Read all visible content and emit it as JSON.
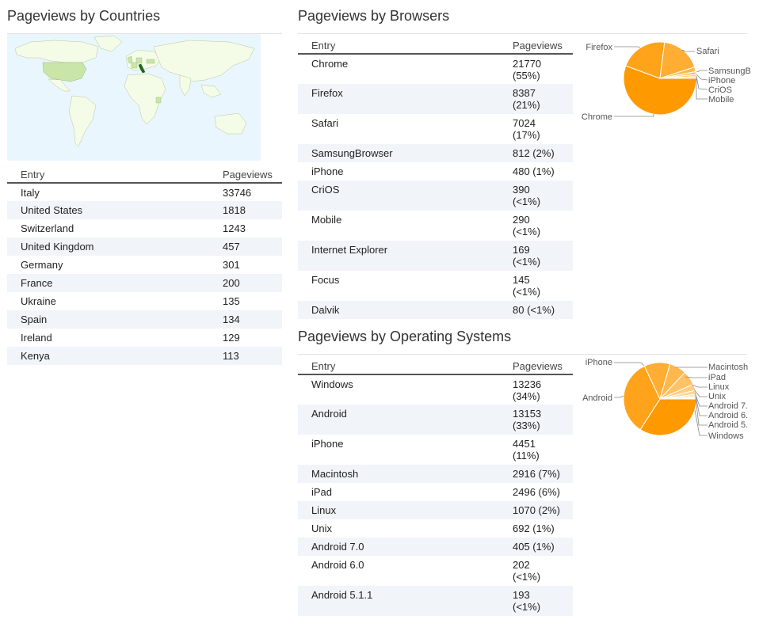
{
  "countries": {
    "title": "Pageviews by Countries",
    "headers": [
      "Entry",
      "Pageviews"
    ],
    "rows": [
      [
        "Italy",
        "33746"
      ],
      [
        "United States",
        "1818"
      ],
      [
        "Switzerland",
        "1243"
      ],
      [
        "United Kingdom",
        "457"
      ],
      [
        "Germany",
        "301"
      ],
      [
        "France",
        "200"
      ],
      [
        "Ukraine",
        "135"
      ],
      [
        "Spain",
        "134"
      ],
      [
        "Ireland",
        "129"
      ],
      [
        "Kenya",
        "113"
      ]
    ]
  },
  "browsers": {
    "title": "Pageviews by Browsers",
    "headers": [
      "Entry",
      "Pageviews"
    ],
    "rows": [
      [
        "Chrome",
        "21770",
        "(55%)"
      ],
      [
        "Firefox",
        "8387",
        "(21%)"
      ],
      [
        "Safari",
        "7024",
        "(17%)"
      ],
      [
        "SamsungBrowser",
        "812 (2%)",
        ""
      ],
      [
        "iPhone",
        "480 (1%)",
        ""
      ],
      [
        "CriOS",
        "390",
        "(<1%)"
      ],
      [
        "Mobile",
        "290",
        "(<1%)"
      ],
      [
        "Internet Explorer",
        "169",
        "(<1%)"
      ],
      [
        "Focus",
        "145",
        "(<1%)"
      ],
      [
        "Dalvik",
        "80 (<1%)",
        ""
      ]
    ]
  },
  "os": {
    "title": "Pageviews by Operating Systems",
    "headers": [
      "Entry",
      "Pageviews"
    ],
    "rows": [
      [
        "Windows",
        "13236",
        "(34%)"
      ],
      [
        "Android",
        "13153",
        "(33%)"
      ],
      [
        "iPhone",
        "4451",
        "(11%)"
      ],
      [
        "Macintosh",
        "2916 (7%)",
        ""
      ],
      [
        "iPad",
        "2496 (6%)",
        ""
      ],
      [
        "Linux",
        "1070 (2%)",
        ""
      ],
      [
        "Unix",
        "692 (1%)",
        ""
      ],
      [
        "Android 7.0",
        "405 (1%)",
        ""
      ],
      [
        "Android 6.0",
        "202",
        "(<1%)"
      ],
      [
        "Android 5.1.1",
        "193",
        "(<1%)"
      ]
    ]
  },
  "colors": {
    "highlight_country": "#1b6b1b",
    "visited_country": "#c9e6a8",
    "land": "#f4fbe6",
    "ocean": "#eaf6fd",
    "row_alt": "#f1f4f9",
    "pie_orange": "#ff9900"
  },
  "chart_data": [
    {
      "type": "pie",
      "title": "",
      "categories": [
        "Chrome",
        "Firefox",
        "Safari",
        "SamsungBrowser",
        "iPhone",
        "CriOS",
        "Mobile"
      ],
      "values": [
        21770,
        8387,
        7024,
        812,
        480,
        390,
        290
      ],
      "labels": [
        "Chrome",
        "Firefox",
        "Safari",
        "SamsungB",
        "iPhone",
        "CriOS",
        "Mobile"
      ]
    },
    {
      "type": "pie",
      "title": "",
      "categories": [
        "Windows",
        "Android",
        "iPhone",
        "Macintosh",
        "iPad",
        "Linux",
        "Unix",
        "Android 7.0",
        "Android 6.0",
        "Android 5.1.1"
      ],
      "values": [
        13236,
        13153,
        4451,
        2916,
        2496,
        1070,
        692,
        405,
        202,
        193
      ],
      "labels": [
        "Windows",
        "Android",
        "iPhone",
        "Macintosh",
        "iPad",
        "Linux",
        "Unix",
        "Android 7.",
        "Android 6.",
        "Android 5."
      ]
    }
  ]
}
